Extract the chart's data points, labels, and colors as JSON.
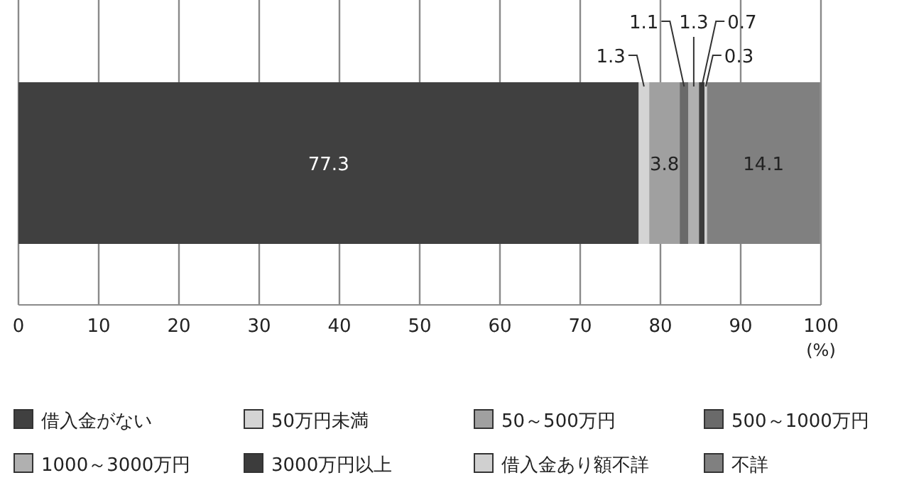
{
  "chart_data": {
    "type": "bar",
    "orientation": "horizontal",
    "stacked": true,
    "categories": [
      null
    ],
    "series": [
      {
        "name": "借入金がない",
        "color": "#404040",
        "values": [
          77.3
        ]
      },
      {
        "name": "50万円未満",
        "color": "#d4d4d4",
        "values": [
          1.3
        ]
      },
      {
        "name": "50～500万円",
        "color": "#a0a0a0",
        "values": [
          3.8
        ]
      },
      {
        "name": "500～1000万円",
        "color": "#6a6a6a",
        "values": [
          1.1
        ]
      },
      {
        "name": "1000～3000万円",
        "color": "#b0b0b0",
        "values": [
          1.3
        ]
      },
      {
        "name": "3000万円以上",
        "color": "#3c3c3c",
        "values": [
          0.7
        ]
      },
      {
        "name": "借入金あり額不詳",
        "color": "#d0d0d0",
        "values": [
          0.3
        ]
      },
      {
        "name": "不詳",
        "color": "#808080",
        "values": [
          14.1
        ]
      }
    ],
    "xlabel": "(%)",
    "xlim": [
      0,
      100
    ],
    "xticks": [
      0,
      10,
      20,
      30,
      40,
      50,
      60,
      70,
      80,
      90,
      100
    ],
    "grid": "x",
    "legend": "bottom",
    "data_labels": true
  }
}
